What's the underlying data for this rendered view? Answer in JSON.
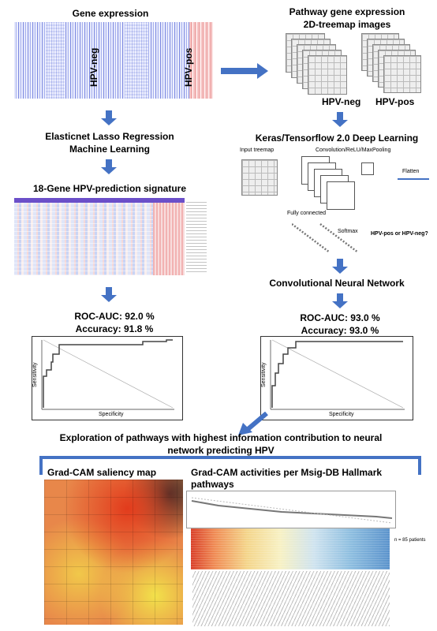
{
  "gene_expression": {
    "title": "Gene expression",
    "neg": "HPV-neg",
    "pos": "HPV-pos"
  },
  "pathway_images": {
    "title_line1": "Pathway gene expression",
    "title_line2": "2D-treemap images",
    "neg": "HPV-neg",
    "pos": "HPV-pos"
  },
  "lasso": {
    "line1": "Elasticnet Lasso Regression",
    "line2": "Machine Learning"
  },
  "signature": {
    "title": "18-Gene HPV-prediction signature"
  },
  "keras": {
    "title": "Keras/Tensorflow 2.0 Deep Learning",
    "input": "Input treemap",
    "conv": "Convolution/ReLU/MaxPooling",
    "flatten": "Flatten",
    "fully": "Fully connected",
    "softmax": "Softmax",
    "output": "HPV-pos or HPV-neg?"
  },
  "cnn": {
    "title": "Convolutional Neural Network"
  },
  "left_metrics": {
    "auc": "ROC-AUC: 92.0 %",
    "acc": "Accuracy: 91.8 %"
  },
  "right_metrics": {
    "auc": "ROC-AUC: 93.0 %",
    "acc": "Accuracy: 93.0 %"
  },
  "roc_axis": {
    "x": "Specificity",
    "y": "Sensitivity"
  },
  "exploration": {
    "line1": "Exploration of pathways with highest information contribution to neural",
    "line2": "network predicting HPV"
  },
  "gradcam": {
    "title": "Grad-CAM saliency map"
  },
  "activities": {
    "line1": "Grad-CAM activities per Msig-DB Hallmark",
    "line2": "pathways",
    "n": "n = 85 patients"
  },
  "colors": {
    "arrow": "#4472c4",
    "bracket": "#4472c4"
  }
}
